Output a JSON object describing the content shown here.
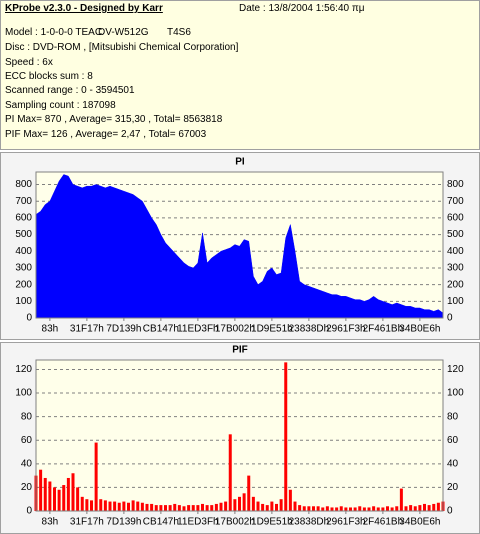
{
  "header": {
    "title": "KProbe v2.3.0 - Designed by Karr",
    "date": "Date : 13/8/2004 1:56:40 πμ",
    "model": "Model : 1-0-0-0 TEAC",
    "drive": "DV-W512G",
    "firmware": "T4S6",
    "disc": "Disc : DVD-ROM ,  [Mitsubishi Chemical Corporation]",
    "speed": "Speed : 6x",
    "ecc": "ECC blocks sum : 8",
    "range": "Scanned range : 0 - 3594501",
    "sampling": "Sampling count : 187098",
    "pi_stats": "PI Max= 870 , Average= 315,30 , Total= 8563818",
    "pif_stats": "PIF Max= 126 , Average= 2,47 , Total= 67003"
  },
  "chart_data": [
    {
      "type": "area",
      "title": "PI",
      "color": "#0000ff",
      "grid": true,
      "xlim": [
        -3,
        85
      ],
      "ylim": [
        0,
        875
      ],
      "yticks": [
        0,
        100,
        200,
        300,
        400,
        500,
        600,
        700,
        800
      ],
      "xticks": [
        {
          "value": 0,
          "label": "83h"
        },
        {
          "value": 8,
          "label": "31F17h"
        },
        {
          "value": 16,
          "label": "7D139h"
        },
        {
          "value": 24,
          "label": "CB147h"
        },
        {
          "value": 32,
          "label": "11ED3Fh"
        },
        {
          "value": 40,
          "label": "17B002h"
        },
        {
          "value": 48,
          "label": "1D9E51h"
        },
        {
          "value": 56,
          "label": "23838Dh"
        },
        {
          "value": 64,
          "label": "2961F3h"
        },
        {
          "value": 72,
          "label": "2F461Bh"
        },
        {
          "value": 80,
          "label": "34B0E6h"
        }
      ],
      "x": [
        -3,
        -2,
        -1,
        0,
        1,
        2,
        3,
        4,
        5,
        6,
        7,
        8,
        9,
        10,
        11,
        12,
        13,
        14,
        15,
        16,
        17,
        18,
        19,
        20,
        21,
        22,
        23,
        24,
        25,
        26,
        27,
        28,
        29,
        30,
        31,
        32,
        33,
        34,
        35,
        36,
        37,
        38,
        39,
        40,
        41,
        42,
        43,
        44,
        45,
        46,
        47,
        48,
        49,
        50,
        51,
        52,
        53,
        54,
        55,
        56,
        57,
        58,
        59,
        60,
        61,
        62,
        63,
        64,
        65,
        66,
        67,
        68,
        69,
        70,
        71,
        72,
        73,
        74,
        75,
        76,
        77,
        78,
        79,
        80,
        81,
        82,
        83,
        84,
        85
      ],
      "values": [
        620,
        640,
        680,
        700,
        760,
        820,
        860,
        850,
        800,
        790,
        780,
        790,
        790,
        800,
        790,
        780,
        790,
        780,
        770,
        760,
        750,
        740,
        720,
        700,
        650,
        600,
        560,
        500,
        450,
        420,
        390,
        360,
        330,
        310,
        300,
        330,
        510,
        330,
        360,
        380,
        400,
        410,
        420,
        440,
        430,
        470,
        460,
        250,
        200,
        220,
        280,
        300,
        260,
        270,
        480,
        560,
        400,
        220,
        200,
        190,
        180,
        170,
        160,
        150,
        140,
        140,
        130,
        130,
        120,
        110,
        110,
        100,
        110,
        130,
        110,
        100,
        90,
        80,
        90,
        80,
        70,
        70,
        60,
        60,
        50,
        50,
        40,
        50,
        30
      ]
    },
    {
      "type": "bar",
      "title": "PIF",
      "color": "#ff0000",
      "grid": true,
      "xlim": [
        -3,
        85
      ],
      "ylim": [
        0,
        128
      ],
      "yticks": [
        0,
        20,
        40,
        60,
        80,
        100,
        120
      ],
      "xticks": [
        {
          "value": 0,
          "label": "83h"
        },
        {
          "value": 8,
          "label": "31F17h"
        },
        {
          "value": 16,
          "label": "7D139h"
        },
        {
          "value": 24,
          "label": "CB147h"
        },
        {
          "value": 32,
          "label": "11ED3Fh"
        },
        {
          "value": 40,
          "label": "17B002h"
        },
        {
          "value": 48,
          "label": "1D9E51h"
        },
        {
          "value": 56,
          "label": "23838Dh"
        },
        {
          "value": 64,
          "label": "2961F3h"
        },
        {
          "value": 72,
          "label": "2F461Bh"
        },
        {
          "value": 80,
          "label": "34B0E6h"
        }
      ],
      "x": [
        -3,
        -2,
        -1,
        0,
        1,
        2,
        3,
        4,
        5,
        6,
        7,
        8,
        9,
        10,
        11,
        12,
        13,
        14,
        15,
        16,
        17,
        18,
        19,
        20,
        21,
        22,
        23,
        24,
        25,
        26,
        27,
        28,
        29,
        30,
        31,
        32,
        33,
        34,
        35,
        36,
        37,
        38,
        39,
        40,
        41,
        42,
        43,
        44,
        45,
        46,
        47,
        48,
        49,
        50,
        51,
        52,
        53,
        54,
        55,
        56,
        57,
        58,
        59,
        60,
        61,
        62,
        63,
        64,
        65,
        66,
        67,
        68,
        69,
        70,
        71,
        72,
        73,
        74,
        75,
        76,
        77,
        78,
        79,
        80,
        81,
        82,
        83,
        84,
        85
      ],
      "values": [
        30,
        35,
        28,
        25,
        20,
        18,
        22,
        28,
        32,
        20,
        12,
        10,
        9,
        58,
        10,
        9,
        8,
        8,
        7,
        8,
        7,
        9,
        8,
        7,
        6,
        6,
        5,
        5,
        5,
        5,
        6,
        5,
        4,
        5,
        5,
        5,
        6,
        5,
        5,
        6,
        7,
        8,
        65,
        10,
        12,
        15,
        30,
        12,
        8,
        6,
        5,
        8,
        6,
        10,
        126,
        18,
        8,
        5,
        4,
        4,
        4,
        4,
        3,
        4,
        3,
        3,
        4,
        3,
        3,
        3,
        4,
        3,
        3,
        4,
        3,
        3,
        4,
        3,
        4,
        19,
        4,
        5,
        4,
        5,
        6,
        5,
        6,
        7,
        8
      ]
    }
  ]
}
